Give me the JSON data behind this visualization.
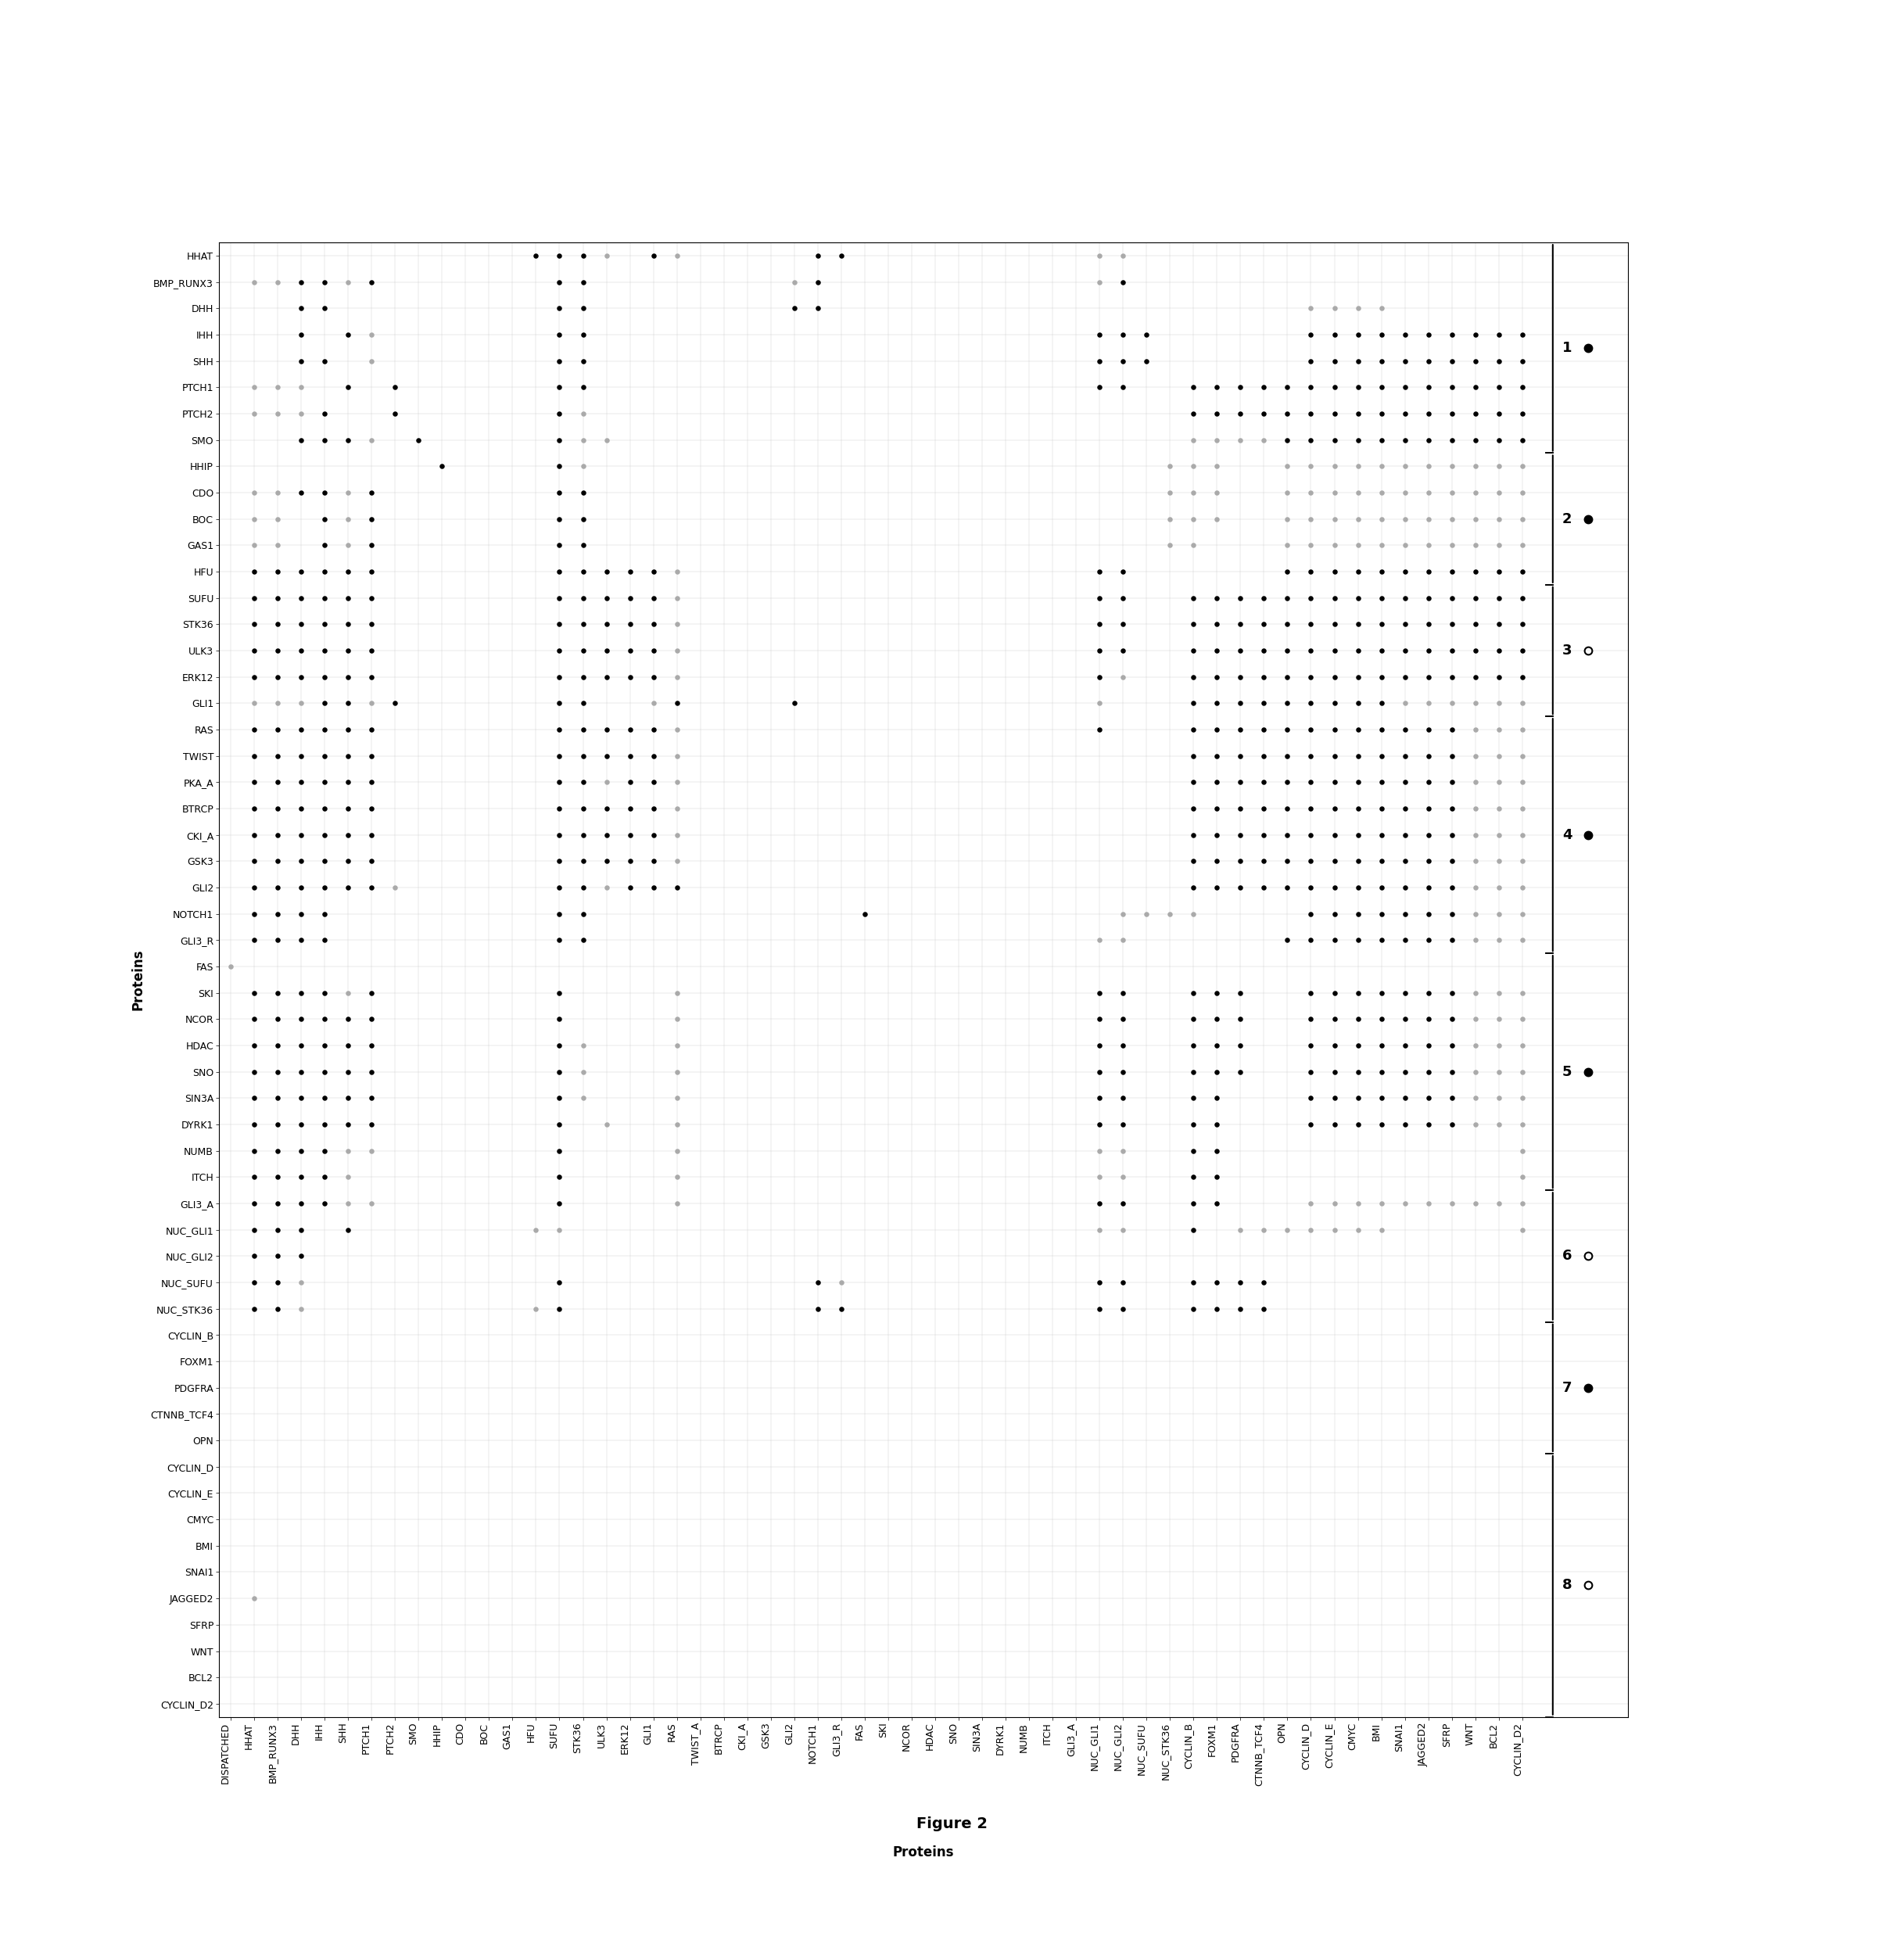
{
  "y_proteins": [
    "HHAT",
    "BMP_RUNX3",
    "DHH",
    "IHH",
    "SHH",
    "PTCH1",
    "PTCH2",
    "SMO",
    "HHIP",
    "CDO",
    "BOC",
    "GAS1",
    "HFU",
    "SUFU",
    "STK36",
    "ULK3",
    "ERK12",
    "GLI1",
    "RAS",
    "TWIST",
    "PKA_A",
    "BTRCP",
    "CKI_A",
    "GSK3",
    "GLI2",
    "NOTCH1",
    "GLI3_R",
    "FAS",
    "SKI",
    "NCOR",
    "HDAC",
    "SNO",
    "SIN3A",
    "DYRK1",
    "NUMB",
    "ITCH",
    "GLI3_A",
    "NUC_GLI1",
    "NUC_GLI2",
    "NUC_SUFU",
    "NUC_STK36",
    "CYCLIN_B",
    "FOXM1",
    "PDGFRA",
    "CTNNB_TCF4",
    "OPN",
    "CYCLIN_D",
    "CYCLIN_E",
    "CMYC",
    "BMI",
    "SNAI1",
    "JAGGED2",
    "SFRP",
    "WNT",
    "BCL2",
    "CYCLIN_D2"
  ],
  "x_proteins": [
    "DISPATCHED",
    "HHAT",
    "BMP_RUNX3",
    "DHH",
    "IHH",
    "SHH",
    "PTCH1",
    "PTCH2",
    "SMO",
    "HHIP",
    "CDO",
    "BOC",
    "GAS1",
    "HFU",
    "SUFU",
    "STK36",
    "ULK3",
    "ERK12",
    "GLI1",
    "RAS",
    "TWIST_A",
    "BTRCP",
    "CKI_A",
    "GSK3",
    "GLI2",
    "NOTCH1",
    "GLI3_R",
    "FAS",
    "SKI",
    "NCOR",
    "HDAC",
    "SNO",
    "SIN3A",
    "DYRK1",
    "NUMB",
    "ITCH",
    "GLI3_A",
    "NUC_GLI1",
    "NUC_GLI2",
    "NUC_SUFU",
    "NUC_STK36",
    "CYCLIN_B",
    "FOXM1",
    "PDGFRA",
    "CTNNB_TCF4",
    "OPN",
    "CYCLIN_D",
    "CYCLIN_E",
    "CMYC",
    "BMI",
    "SNAI1",
    "JAGGED2",
    "SFRP",
    "WNT",
    "BCL2",
    "CYCLIN_D2"
  ],
  "bracket_groups": [
    {
      "label": "1",
      "rows": [
        0,
        7
      ],
      "marker": "filled"
    },
    {
      "label": "2",
      "rows": [
        8,
        12
      ],
      "marker": "filled"
    },
    {
      "label": "3",
      "rows": [
        13,
        17
      ],
      "marker": "open"
    },
    {
      "label": "4",
      "rows": [
        18,
        26
      ],
      "marker": "filled"
    },
    {
      "label": "5",
      "rows": [
        27,
        35
      ],
      "marker": "filled"
    },
    {
      "label": "6",
      "rows": [
        36,
        40
      ],
      "marker": "open"
    },
    {
      "label": "7",
      "rows": [
        41,
        45
      ],
      "marker": "filled"
    },
    {
      "label": "8",
      "rows": [
        46,
        55
      ],
      "marker": "open"
    }
  ],
  "figure_caption": "Figure 2",
  "xlabel": "Proteins",
  "ylabel": "Proteins",
  "background_color": "#ffffff",
  "dot_color_filled": "#000000",
  "dot_color_open": "#aaaaaa",
  "title_fontsize": 14,
  "label_fontsize": 9,
  "axis_label_fontsize": 12
}
